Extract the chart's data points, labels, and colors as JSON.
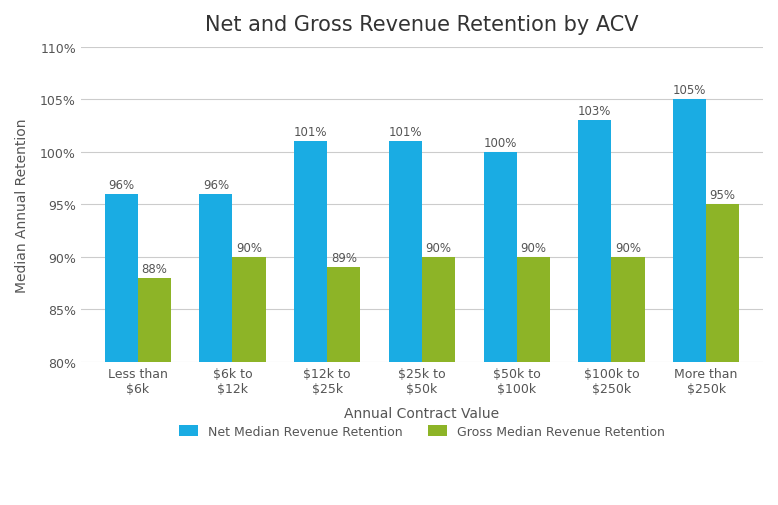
{
  "title": "Net and Gross Revenue Retention by ACV",
  "xlabel": "Annual Contract Value",
  "ylabel": "Median Annual Retention",
  "categories": [
    "Less than\n$6k",
    "$6k to\n$12k",
    "$12k to\n$25k",
    "$25k to\n$50k",
    "$50k to\n$100k",
    "$100k to\n$250k",
    "More than\n$250k"
  ],
  "net_values": [
    96,
    96,
    101,
    101,
    100,
    103,
    105
  ],
  "gross_values": [
    88,
    90,
    89,
    90,
    90,
    90,
    95
  ],
  "net_color": "#1AACE3",
  "gross_color": "#8DB427",
  "ylim_min": 80,
  "ylim_max": 110,
  "yticks": [
    80,
    85,
    90,
    95,
    100,
    105,
    110
  ],
  "ytick_labels": [
    "80%",
    "85%",
    "90%",
    "95%",
    "100%",
    "105%",
    "110%"
  ],
  "legend_net": "Net Median Revenue Retention",
  "legend_gross": "Gross Median Revenue Retention",
  "bar_width": 0.35,
  "label_fontsize": 8.5,
  "title_fontsize": 15,
  "axis_label_fontsize": 10,
  "tick_fontsize": 9,
  "background_color": "#ffffff",
  "grid_color": "#cccccc"
}
